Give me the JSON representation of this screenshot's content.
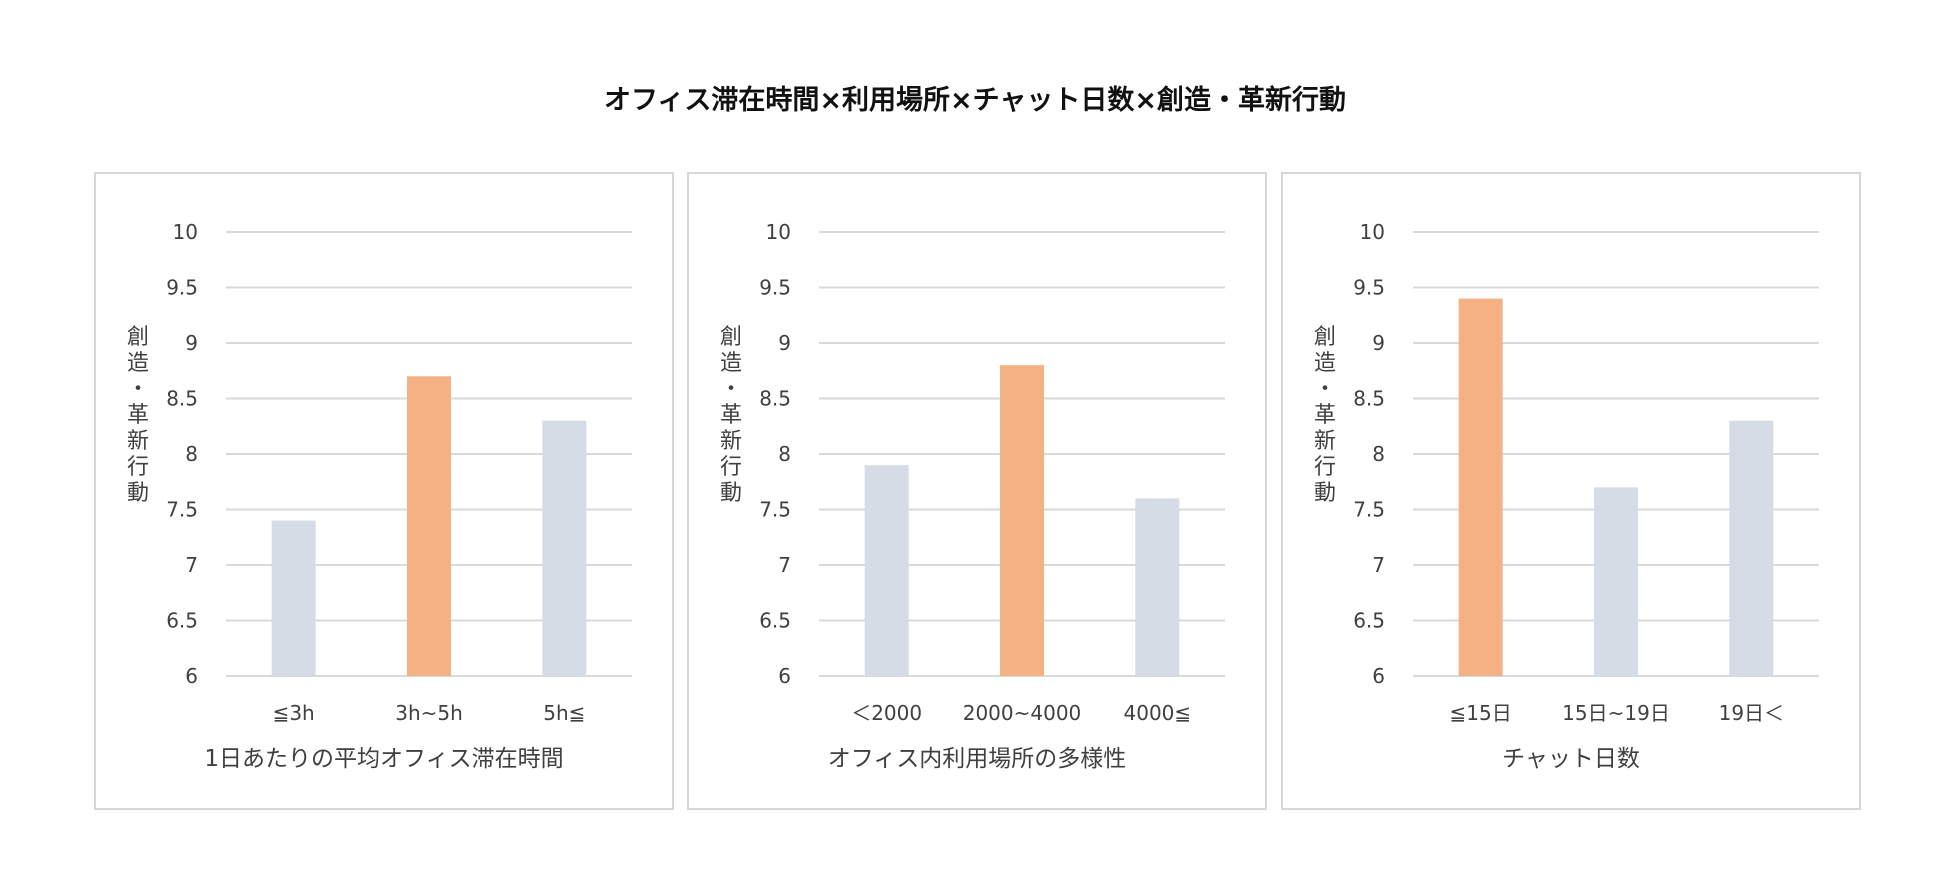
{
  "title": "オフィス滞在時間×利用場所×チャット日数×創造・革新行動",
  "colors": {
    "highlight": "#f4b183",
    "default": "#d6dce5",
    "grid": "#d9d9d9",
    "border": "#d7d7d7",
    "text": "#404040"
  },
  "chart_data": [
    {
      "type": "bar",
      "title": "オフィス滞在時間×利用場所×チャット日数×創造・革新行動",
      "xlabel": "1日あたりの平均オフィス滞在時間",
      "ylabel": "創造・革新行動",
      "categories": [
        "≦3h",
        "3h~5h",
        "5h≦"
      ],
      "values": [
        7.4,
        8.7,
        8.3
      ],
      "highlight_index": 1,
      "ylim": [
        6,
        10
      ],
      "yticks": [
        6,
        6.5,
        7,
        7.5,
        8,
        8.5,
        9,
        9.5,
        10
      ],
      "grid": true
    },
    {
      "type": "bar",
      "xlabel": "オフィス内利用場所の多様性",
      "ylabel": "創造・革新行動",
      "categories": [
        "＜2000",
        "2000~4000",
        "4000≦"
      ],
      "values": [
        7.9,
        8.8,
        7.6
      ],
      "highlight_index": 1,
      "ylim": [
        6,
        10
      ],
      "yticks": [
        6,
        6.5,
        7,
        7.5,
        8,
        8.5,
        9,
        9.5,
        10
      ],
      "grid": true
    },
    {
      "type": "bar",
      "xlabel": "チャット日数",
      "ylabel": "創造・革新行動",
      "categories": [
        "≦15日",
        "15日~19日",
        "19日＜"
      ],
      "values": [
        9.4,
        7.7,
        8.3
      ],
      "highlight_index": 0,
      "ylim": [
        6,
        10
      ],
      "yticks": [
        6,
        6.5,
        7,
        7.5,
        8,
        8.5,
        9,
        9.5,
        10
      ],
      "grid": true
    }
  ]
}
